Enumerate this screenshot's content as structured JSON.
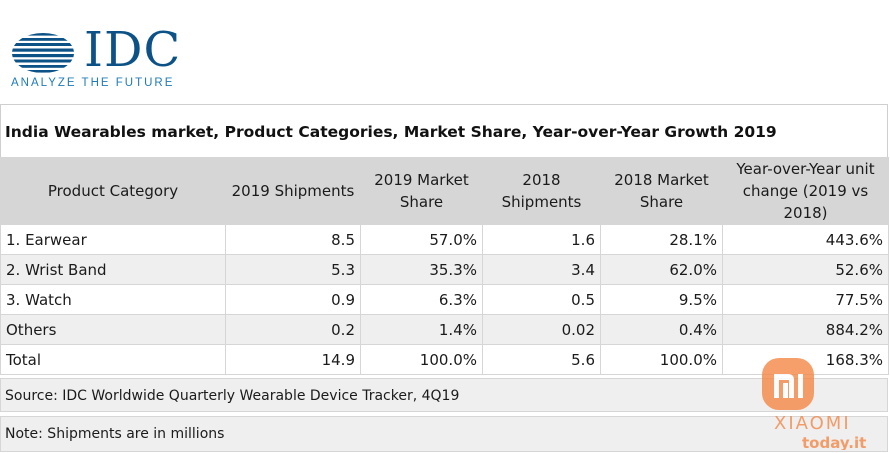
{
  "logo": {
    "wordmark": "IDC",
    "tagline": "ANALYZE THE FUTURE",
    "color": "#0d5287",
    "tagline_color": "#1f7bb8"
  },
  "title": "India Wearables market, Product Categories, Market Share, Year-over-Year Growth 2019",
  "chart_data": {
    "type": "table",
    "title": "India Wearables market, Product Categories, Market Share, Year-over-Year Growth 2019",
    "columns": [
      "Product Category",
      "2019 Shipments",
      "2019 Market Share",
      "2018 Shipments",
      "2018 Market Share",
      "Year-over-Year unit change (2019 vs 2018)"
    ],
    "rows": [
      [
        "1. Earwear",
        "8.5",
        "57.0%",
        "1.6",
        "28.1%",
        "443.6%"
      ],
      [
        "2. Wrist Band",
        "5.3",
        "35.3%",
        "3.4",
        "62.0%",
        "52.6%"
      ],
      [
        "3. Watch",
        "0.9",
        "6.3%",
        "0.5",
        "9.5%",
        "77.5%"
      ],
      [
        "Others",
        "0.2",
        "1.4%",
        "0.02",
        "0.4%",
        "884.2%"
      ],
      [
        "Total",
        "14.9",
        "100.0%",
        "5.6",
        "100.0%",
        "168.3%"
      ]
    ],
    "header_background": "#d6d6d6",
    "alt_row_background": "#efefef"
  },
  "source": "Source: IDC Worldwide Quarterly Wearable Device Tracker, 4Q19",
  "note": "Note: Shipments are in millions",
  "watermark": {
    "brand": "XIAOMI",
    "site": "today.it",
    "color": "#f58a4b"
  }
}
